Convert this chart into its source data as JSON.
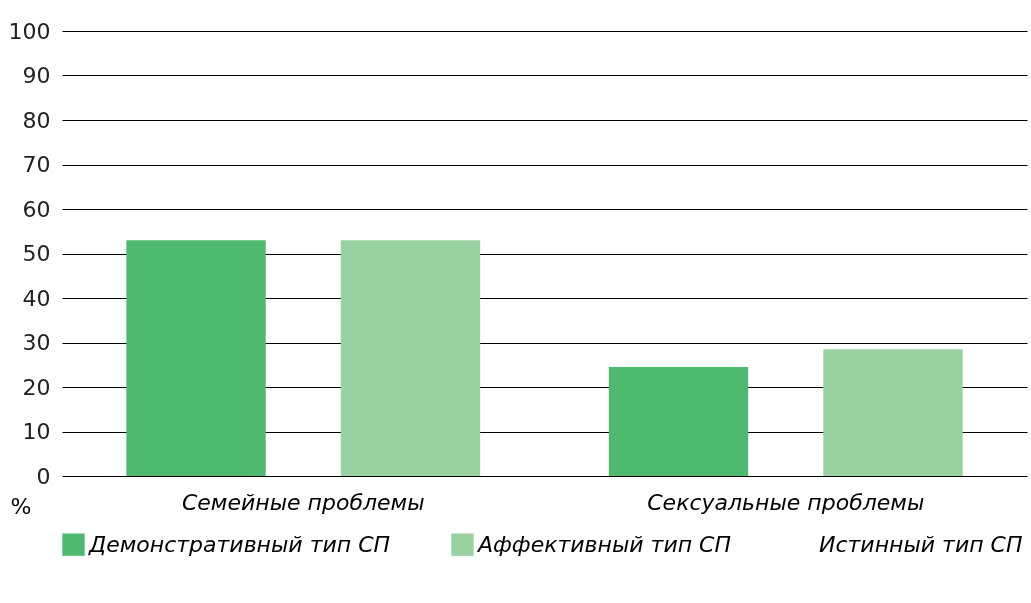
{
  "chart_data": {
    "type": "bar",
    "ylabel": "%",
    "categories": [
      "Семейные проблемы",
      "Сексуальные проблемы"
    ],
    "series": [
      {
        "name": "Демонстративный тип СП",
        "color": "#4fba6f",
        "values": [
          53,
          24.5
        ]
      },
      {
        "name": "Аффективный тип СП",
        "color": "#99d1a1",
        "values": [
          53,
          28.5
        ]
      },
      {
        "name": "Истинный тип СП",
        "values": [
          null,
          null
        ]
      }
    ],
    "ylim": [
      0,
      100
    ],
    "yticks": [
      0,
      10,
      20,
      30,
      40,
      50,
      60,
      70,
      80,
      90,
      100
    ],
    "grid": "y",
    "legend": "bottom"
  }
}
